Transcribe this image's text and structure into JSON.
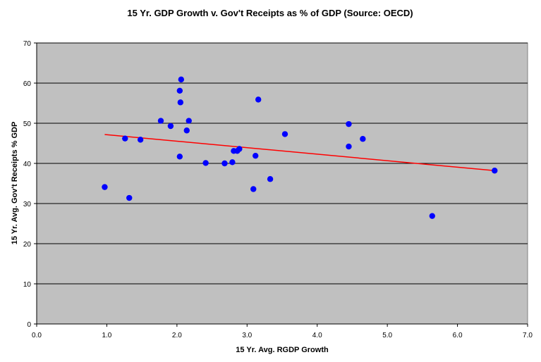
{
  "chart_data": {
    "type": "scatter",
    "title": "15 Yr. GDP Growth v. Gov't Receipts as % of GDP (Source: OECD)",
    "xlabel": "15 Yr. Avg. RGDP Growth",
    "ylabel": "15 Yr. Avg. Gov't Receipts % GDP",
    "xlim": [
      0,
      7
    ],
    "ylim": [
      0,
      70
    ],
    "x_ticks": [
      "0.0",
      "1.0",
      "2.0",
      "3.0",
      "4.0",
      "5.0",
      "6.0",
      "7.0"
    ],
    "y_ticks": [
      "0",
      "10",
      "20",
      "30",
      "40",
      "50",
      "60",
      "70"
    ],
    "x_tick_values": [
      0,
      1,
      2,
      3,
      4,
      5,
      6,
      7
    ],
    "y_tick_values": [
      0,
      10,
      20,
      30,
      40,
      50,
      60,
      70
    ],
    "grid": "horizontal",
    "legend": "none",
    "colors": {
      "plot_bg": "#c0c0c0",
      "marker": "#0000ff",
      "trendline": "#ff0000",
      "grid": "#000000"
    },
    "points": [
      {
        "x": 0.97,
        "y": 34.1
      },
      {
        "x": 1.26,
        "y": 46.2
      },
      {
        "x": 1.32,
        "y": 31.4
      },
      {
        "x": 1.48,
        "y": 45.9
      },
      {
        "x": 1.77,
        "y": 50.6
      },
      {
        "x": 1.91,
        "y": 49.3
      },
      {
        "x": 2.04,
        "y": 58.1
      },
      {
        "x": 2.06,
        "y": 60.9
      },
      {
        "x": 2.05,
        "y": 55.2
      },
      {
        "x": 2.04,
        "y": 41.7
      },
      {
        "x": 2.14,
        "y": 48.2
      },
      {
        "x": 2.17,
        "y": 50.6
      },
      {
        "x": 2.41,
        "y": 40.1
      },
      {
        "x": 2.68,
        "y": 40.0
      },
      {
        "x": 2.79,
        "y": 40.3
      },
      {
        "x": 2.81,
        "y": 43.1
      },
      {
        "x": 2.86,
        "y": 43.1
      },
      {
        "x": 2.89,
        "y": 43.6
      },
      {
        "x": 3.09,
        "y": 33.6
      },
      {
        "x": 3.12,
        "y": 41.9
      },
      {
        "x": 3.16,
        "y": 55.9
      },
      {
        "x": 3.33,
        "y": 36.1
      },
      {
        "x": 3.54,
        "y": 47.3
      },
      {
        "x": 4.45,
        "y": 49.8
      },
      {
        "x": 4.45,
        "y": 44.2
      },
      {
        "x": 4.65,
        "y": 46.1
      },
      {
        "x": 5.64,
        "y": 26.9
      },
      {
        "x": 6.53,
        "y": 38.2
      }
    ],
    "trendline": {
      "x": [
        0.97,
        6.53
      ],
      "y": [
        47.2,
        38.2
      ]
    }
  }
}
